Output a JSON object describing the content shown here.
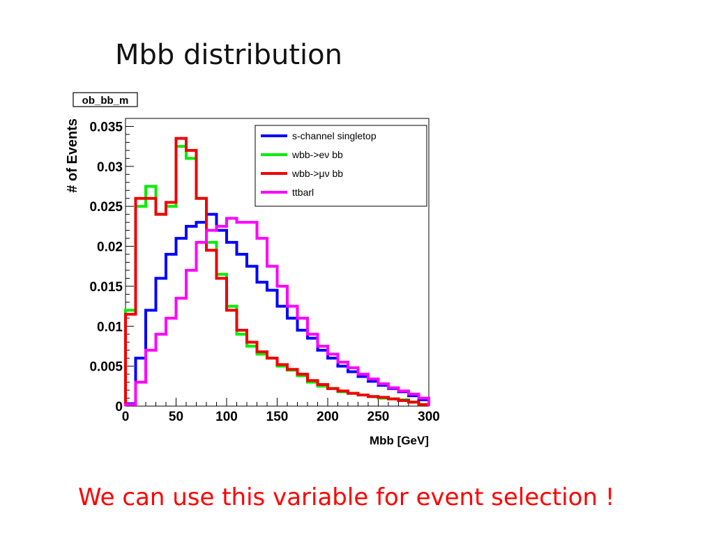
{
  "slide": {
    "title": "Mbb distribution",
    "footer": "We can use this variable for event selection !"
  },
  "chart_data": {
    "type": "line",
    "title": "ob_bb_m",
    "xlabel": "Mbb [GeV]",
    "ylabel": "# of Events",
    "xlim": [
      0,
      300
    ],
    "ylim": [
      0,
      0.036
    ],
    "x_ticks": [
      0,
      50,
      100,
      150,
      200,
      250,
      300
    ],
    "y_ticks": [
      0,
      0.005,
      0.01,
      0.015,
      0.02,
      0.025,
      0.03,
      0.035
    ],
    "x_tick_labels": [
      "0",
      "50",
      "100",
      "150",
      "200",
      "250",
      "300"
    ],
    "y_tick_labels": [
      "0",
      "0.005",
      "0.01",
      "0.015",
      "0.02",
      "0.025",
      "0.03",
      "0.035"
    ],
    "grid": false,
    "legend_position": "top-right",
    "x": [
      5,
      15,
      25,
      35,
      45,
      55,
      65,
      75,
      85,
      95,
      105,
      115,
      125,
      135,
      145,
      155,
      165,
      175,
      185,
      195,
      205,
      215,
      225,
      235,
      245,
      255,
      265,
      275,
      285,
      295
    ],
    "series": [
      {
        "name": "s-channel singletop",
        "color": "#0000ff",
        "values": [
          0.0003,
          0.006,
          0.012,
          0.016,
          0.019,
          0.021,
          0.0225,
          0.023,
          0.024,
          0.022,
          0.0205,
          0.019,
          0.0175,
          0.0155,
          0.0145,
          0.0125,
          0.011,
          0.0095,
          0.0085,
          0.007,
          0.006,
          0.005,
          0.0043,
          0.0037,
          0.0031,
          0.0026,
          0.0022,
          0.0018,
          0.0013,
          0.0008
        ]
      },
      {
        "name": "wbb->eν bb",
        "color": "#00ee00",
        "values": [
          0.012,
          0.025,
          0.0275,
          0.024,
          0.025,
          0.0325,
          0.031,
          0.026,
          0.0205,
          0.0165,
          0.0125,
          0.009,
          0.0075,
          0.0065,
          0.006,
          0.005,
          0.0045,
          0.0038,
          0.003,
          0.0025,
          0.0022,
          0.0018,
          0.0016,
          0.0014,
          0.0012,
          0.001,
          0.0009,
          0.0008,
          0.0005,
          0.0002
        ]
      },
      {
        "name": "wbb->μν bb",
        "color": "#ee0000",
        "values": [
          0.0115,
          0.026,
          0.026,
          0.024,
          0.0255,
          0.0335,
          0.032,
          0.026,
          0.0195,
          0.016,
          0.012,
          0.0095,
          0.008,
          0.0068,
          0.006,
          0.0052,
          0.0046,
          0.004,
          0.0032,
          0.0027,
          0.0022,
          0.0019,
          0.0016,
          0.0014,
          0.0012,
          0.0011,
          0.0009,
          0.0007,
          0.0005,
          0.0002
        ]
      },
      {
        "name": "ttbarl",
        "color": "#ff00ff",
        "values": [
          0.0002,
          0.003,
          0.007,
          0.009,
          0.011,
          0.0135,
          0.017,
          0.0205,
          0.022,
          0.0225,
          0.0235,
          0.023,
          0.023,
          0.021,
          0.0175,
          0.015,
          0.0125,
          0.011,
          0.009,
          0.0075,
          0.0065,
          0.0055,
          0.0048,
          0.004,
          0.0034,
          0.0028,
          0.0023,
          0.0019,
          0.0015,
          0.001
        ]
      }
    ]
  }
}
